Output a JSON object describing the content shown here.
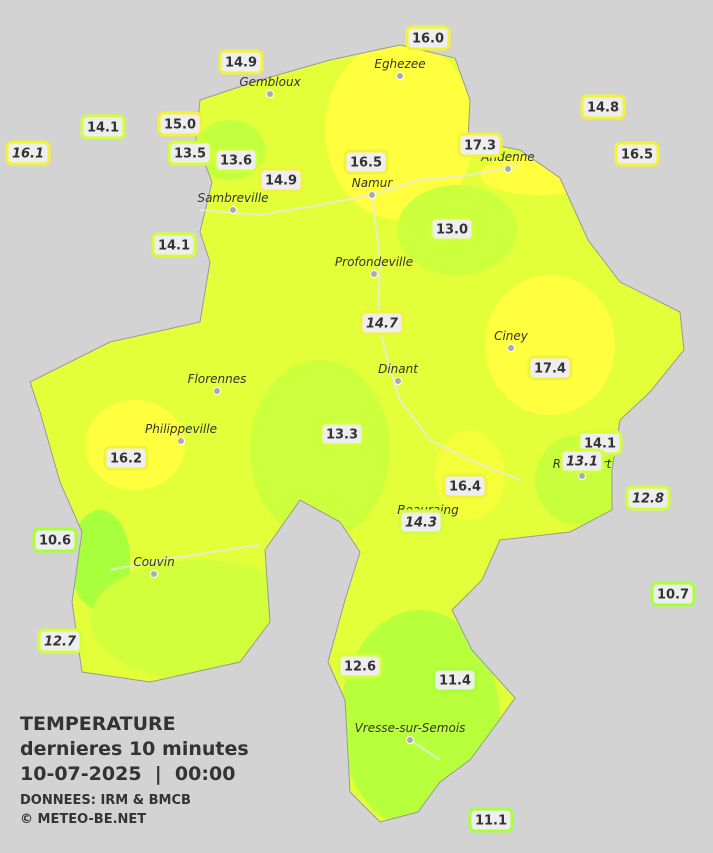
{
  "legend": {
    "title": "TEMPERATURE",
    "subtitle": "dernieres 10 minutes",
    "datetime": "10-07-2025  |  00:00",
    "source": "DONNEES: IRM & BMCB",
    "copyright": "© METEO-BE.NET"
  },
  "cities": [
    "Gembloux",
    "Eghezee",
    "Andenne",
    "Namur",
    "Sambreville",
    "Profondeville",
    "Ciney",
    "Dinant",
    "Florennes",
    "Philippeville",
    "Rochefort",
    "Beauraing",
    "Couvin",
    "Vresse-sur-Semois"
  ],
  "stations": [
    {
      "value": "16.0",
      "italic": false
    },
    {
      "value": "14.9",
      "italic": false
    },
    {
      "value": "14.8",
      "italic": false
    },
    {
      "value": "14.1",
      "italic": false
    },
    {
      "value": "15.0",
      "italic": false
    },
    {
      "value": "16.1",
      "italic": true
    },
    {
      "value": "13.5",
      "italic": false
    },
    {
      "value": "13.6",
      "italic": false
    },
    {
      "value": "16.5",
      "italic": false
    },
    {
      "value": "17.3",
      "italic": false
    },
    {
      "value": "16.5",
      "italic": false
    },
    {
      "value": "14.9",
      "italic": false
    },
    {
      "value": "14.1",
      "italic": false
    },
    {
      "value": "13.0",
      "italic": false
    },
    {
      "value": "14.7",
      "italic": true
    },
    {
      "value": "17.4",
      "italic": false
    },
    {
      "value": "13.3",
      "italic": false
    },
    {
      "value": "14.1",
      "italic": false
    },
    {
      "value": "13.1",
      "italic": true
    },
    {
      "value": "16.2",
      "italic": false
    },
    {
      "value": "16.4",
      "italic": false
    },
    {
      "value": "12.8",
      "italic": true
    },
    {
      "value": "14.3",
      "italic": true
    },
    {
      "value": "10.6",
      "italic": false
    },
    {
      "value": "10.7",
      "italic": false
    },
    {
      "value": "12.7",
      "italic": true
    },
    {
      "value": "12.6",
      "italic": false
    },
    {
      "value": "11.4",
      "italic": false
    },
    {
      "value": "11.1",
      "italic": false
    }
  ]
}
